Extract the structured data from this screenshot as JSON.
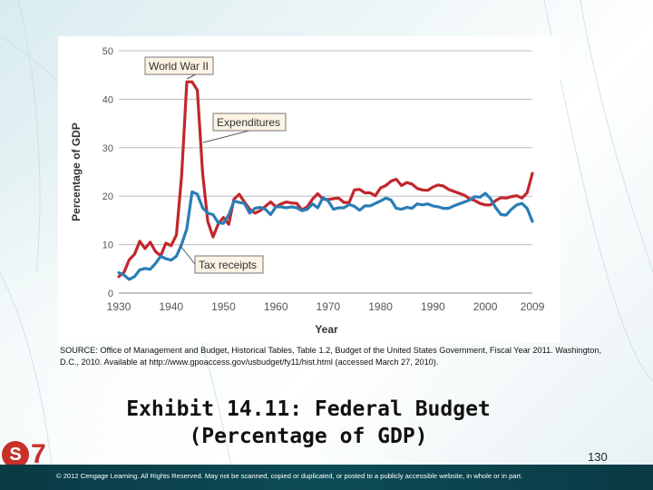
{
  "chart_data": {
    "type": "line",
    "ylabel": "Percentage of GDP",
    "xlabel": "Year",
    "ylim": [
      0,
      50
    ],
    "xlim": [
      1930,
      2009
    ],
    "yticks": [
      "0",
      "10",
      "20",
      "30",
      "40",
      "50"
    ],
    "xticks": [
      "1930",
      "1940",
      "1950",
      "1960",
      "1970",
      "1980",
      "1990",
      "2000",
      "2009"
    ],
    "grid": "horizontal",
    "series": [
      {
        "name": "Expenditures",
        "color": "#c1272d",
        "x": [
          1930,
          1931,
          1932,
          1933,
          1934,
          1935,
          1936,
          1937,
          1938,
          1939,
          1940,
          1941,
          1942,
          1943,
          1944,
          1945,
          1946,
          1947,
          1948,
          1949,
          1950,
          1951,
          1952,
          1953,
          1954,
          1955,
          1956,
          1957,
          1958,
          1959,
          1960,
          1961,
          1962,
          1963,
          1964,
          1965,
          1966,
          1967,
          1968,
          1969,
          1970,
          1971,
          1972,
          1973,
          1974,
          1975,
          1976,
          1977,
          1978,
          1979,
          1980,
          1981,
          1982,
          1983,
          1984,
          1985,
          1986,
          1987,
          1988,
          1989,
          1990,
          1991,
          1992,
          1993,
          1994,
          1995,
          1996,
          1997,
          1998,
          1999,
          2000,
          2001,
          2002,
          2003,
          2004,
          2005,
          2006,
          2007,
          2008,
          2009
        ],
        "values": [
          3.4,
          4.3,
          6.9,
          8.0,
          10.7,
          9.2,
          10.5,
          8.6,
          7.7,
          10.3,
          9.8,
          12.0,
          24.3,
          43.6,
          43.6,
          41.9,
          24.8,
          14.8,
          11.6,
          14.3,
          15.6,
          14.2,
          19.4,
          20.4,
          18.8,
          17.3,
          16.5,
          17.0,
          17.9,
          18.8,
          17.8,
          18.4,
          18.8,
          18.6,
          18.5,
          17.2,
          17.8,
          19.4,
          20.5,
          19.4,
          19.3,
          19.5,
          19.6,
          18.7,
          18.7,
          21.3,
          21.4,
          20.7,
          20.7,
          20.1,
          21.7,
          22.2,
          23.1,
          23.5,
          22.2,
          22.8,
          22.5,
          21.6,
          21.3,
          21.2,
          21.9,
          22.3,
          22.1,
          21.4,
          21.0,
          20.6,
          20.2,
          19.5,
          19.1,
          18.5,
          18.2,
          18.2,
          19.1,
          19.7,
          19.6,
          19.9,
          20.1,
          19.6,
          20.7,
          24.7
        ]
      },
      {
        "name": "Tax receipts",
        "color": "#2a7db5",
        "x": [
          1930,
          1931,
          1932,
          1933,
          1934,
          1935,
          1936,
          1937,
          1938,
          1939,
          1940,
          1941,
          1942,
          1943,
          1944,
          1945,
          1946,
          1947,
          1948,
          1949,
          1950,
          1951,
          1952,
          1953,
          1954,
          1955,
          1956,
          1957,
          1958,
          1959,
          1960,
          1961,
          1962,
          1963,
          1964,
          1965,
          1966,
          1967,
          1968,
          1969,
          1970,
          1971,
          1972,
          1973,
          1974,
          1975,
          1976,
          1977,
          1978,
          1979,
          1980,
          1981,
          1982,
          1983,
          1984,
          1985,
          1986,
          1987,
          1988,
          1989,
          1990,
          1991,
          1992,
          1993,
          1994,
          1995,
          1996,
          1997,
          1998,
          1999,
          2000,
          2001,
          2002,
          2003,
          2004,
          2005,
          2006,
          2007,
          2008,
          2009
        ],
        "values": [
          4.2,
          3.7,
          2.8,
          3.4,
          4.8,
          5.1,
          4.9,
          6.1,
          7.6,
          7.1,
          6.8,
          7.6,
          10.1,
          13.3,
          20.9,
          20.4,
          17.6,
          16.5,
          16.2,
          14.5,
          14.4,
          16.1,
          19.0,
          18.7,
          18.5,
          16.5,
          17.5,
          17.7,
          17.3,
          16.2,
          17.8,
          17.8,
          17.6,
          17.8,
          17.6,
          17.0,
          17.3,
          18.4,
          17.6,
          19.7,
          19.0,
          17.3,
          17.6,
          17.6,
          18.3,
          17.9,
          17.1,
          18.0,
          18.0,
          18.5,
          19.0,
          19.6,
          19.2,
          17.5,
          17.3,
          17.7,
          17.5,
          18.4,
          18.2,
          18.4,
          18.0,
          17.8,
          17.5,
          17.5,
          18.0,
          18.4,
          18.8,
          19.2,
          19.9,
          19.8,
          20.6,
          19.5,
          17.6,
          16.2,
          16.1,
          17.3,
          18.2,
          18.5,
          17.5,
          14.8
        ]
      }
    ],
    "annotations": [
      "World War II",
      "Expenditures",
      "Tax receipts"
    ]
  },
  "source_text": "SOURCE: Office of Management and Budget, Historical Tables, Table 1.2, Budget of the United States Government, Fiscal Year 2011. Washington, D.C., 2010. Available at http://www.gpoaccess.gov/usbudget/fy11/hist.html (accessed March 27, 2010).",
  "title_line1": "Exhibit 14.11: Federal Budget",
  "title_line2": "(Percentage of GDP)",
  "page_number": "130",
  "footer": "© 2012 Cengage Learning. All Rights Reserved. May not be scanned, copied or duplicated, or posted to a publicly accessible website, in whole or in part.",
  "logo": {
    "letter": "S",
    "number": "7",
    "color": "#c8302a"
  }
}
